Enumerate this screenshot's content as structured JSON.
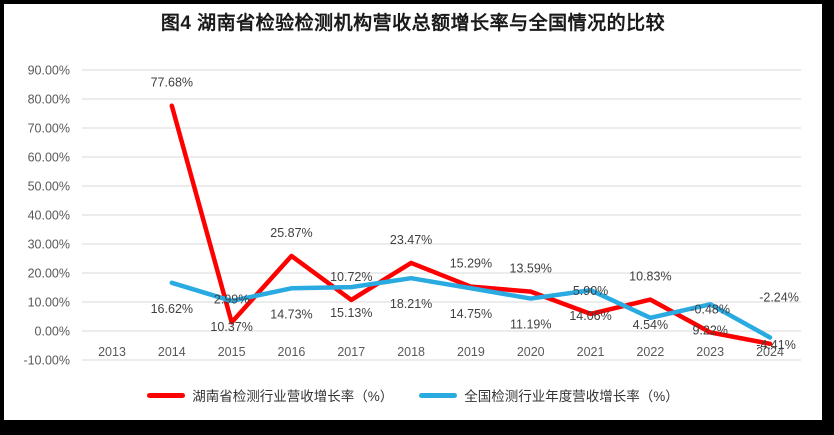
{
  "window": {
    "frame_color": "#000000",
    "panel_color": "#ffffff"
  },
  "title": "图4 湖南省检验检测机构营收总额增长率与全国情况的比较",
  "colors": {
    "hunan_series": "#FF0000",
    "national_series": "#29ABE2",
    "gridline": "#D9D9D9",
    "axis_text": "#595959",
    "data_label_text": "#404040"
  },
  "chart_data": {
    "type": "line",
    "title": "图4 湖南省检验检测机构营收总额增长率与全国情况的比较",
    "categories": [
      "2013",
      "2014",
      "2015",
      "2016",
      "2017",
      "2018",
      "2019",
      "2020",
      "2021",
      "2022",
      "2023",
      "2024"
    ],
    "series": [
      {
        "name": "湖南省检测行业营收增长率（%）",
        "color": "#FF0000",
        "values": [
          null,
          77.68,
          2.99,
          25.87,
          10.72,
          23.47,
          15.29,
          13.59,
          5.9,
          10.83,
          -0.48,
          -4.41
        ],
        "data_labels": [
          "",
          "77.68%",
          "2.99%",
          "25.87%",
          "10.72%",
          "23.47%",
          "15.29%",
          "13.59%",
          "5.90%",
          "10.83%",
          "-0.48%",
          "-4.41%"
        ]
      },
      {
        "name": "全国检测行业年度营收增长率（%）",
        "color": "#29ABE2",
        "values": [
          null,
          16.62,
          10.37,
          14.73,
          15.13,
          18.21,
          14.75,
          11.19,
          14.06,
          4.54,
          9.22,
          -2.24
        ],
        "data_labels": [
          "",
          "16.62%",
          "10.37%",
          "14.73%",
          "15.13%",
          "18.21%",
          "14.75%",
          "11.19%",
          "14.06%",
          "4.54%",
          "9.22%",
          "-2.24%"
        ]
      }
    ],
    "y_axis": {
      "tick_labels": [
        "90.00%",
        "80.00%",
        "70.00%",
        "60.00%",
        "50.00%",
        "40.00%",
        "30.00%",
        "20.00%",
        "10.00%",
        "0.00%",
        "-10.00%"
      ],
      "min": -10,
      "max": 90,
      "step": 10
    },
    "grid": true,
    "legend_position": "bottom",
    "xlabel": "",
    "ylabel": ""
  }
}
